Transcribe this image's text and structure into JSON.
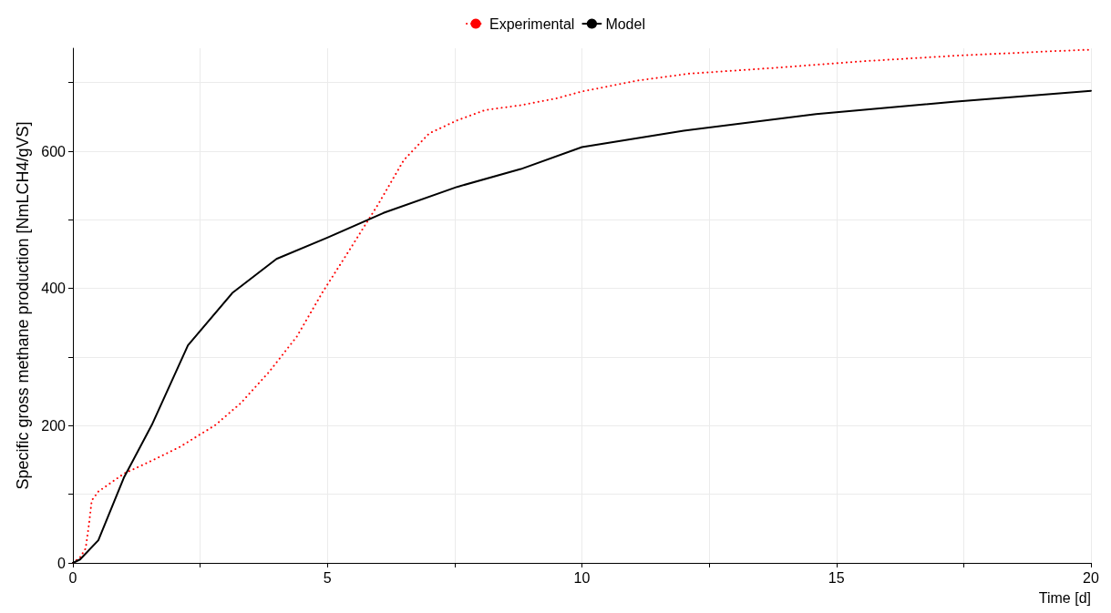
{
  "chart_data": {
    "type": "line",
    "xlabel": "Time [d]",
    "ylabel": "Specific gross methane production [NmLCH4/gVS]",
    "legend": "top",
    "grid": true,
    "marker": "none",
    "xlim": [
      0,
      20
    ],
    "xticks": [
      0,
      {
        "value": 2.5,
        "label": null
      },
      5,
      {
        "value": 7.5,
        "label": null
      },
      10,
      {
        "value": 12.5,
        "label": null
      },
      15,
      {
        "value": 17.5,
        "label": null
      },
      20
    ],
    "ylim": [
      0,
      750
    ],
    "yticks": [
      0,
      {
        "value": 100,
        "label": null
      },
      200,
      {
        "value": 300,
        "label": null
      },
      400,
      {
        "value": 500,
        "label": null
      },
      600,
      {
        "value": 700,
        "label": null
      }
    ],
    "series": [
      {
        "name": "Experimental",
        "color": "#ff0000",
        "line_style": "dotted",
        "x": [
          0,
          0.14,
          0.25,
          0.32,
          0.37,
          0.5,
          1.0,
          1.55,
          2.1,
          2.8,
          3.3,
          3.85,
          4.4,
          4.9,
          5.45,
          6.0,
          6.5,
          7.0,
          7.55,
          8.1,
          8.8,
          9.5,
          10.0,
          11.1,
          12.1,
          13.7,
          15.5,
          17.3,
          19.0,
          20
        ],
        "values": [
          0,
          8,
          21,
          59,
          91,
          104,
          130,
          149,
          169,
          201,
          233,
          278,
          330,
          394,
          458,
          523,
          587,
          626,
          645,
          660,
          667,
          677,
          687,
          703,
          713,
          721,
          731,
          739,
          745,
          748
        ]
      },
      {
        "name": "Model",
        "color": "#000000",
        "line_style": "solid",
        "x": [
          0,
          0.14,
          0.5,
          1.0,
          1.55,
          2.26,
          3.14,
          4.0,
          5.0,
          6.1,
          7.55,
          8.8,
          10,
          12,
          14.6,
          17.3,
          20
        ],
        "values": [
          0,
          5,
          33,
          124,
          201,
          317,
          394,
          443,
          474,
          510,
          548,
          574,
          606,
          630,
          654,
          672,
          688
        ]
      }
    ]
  }
}
